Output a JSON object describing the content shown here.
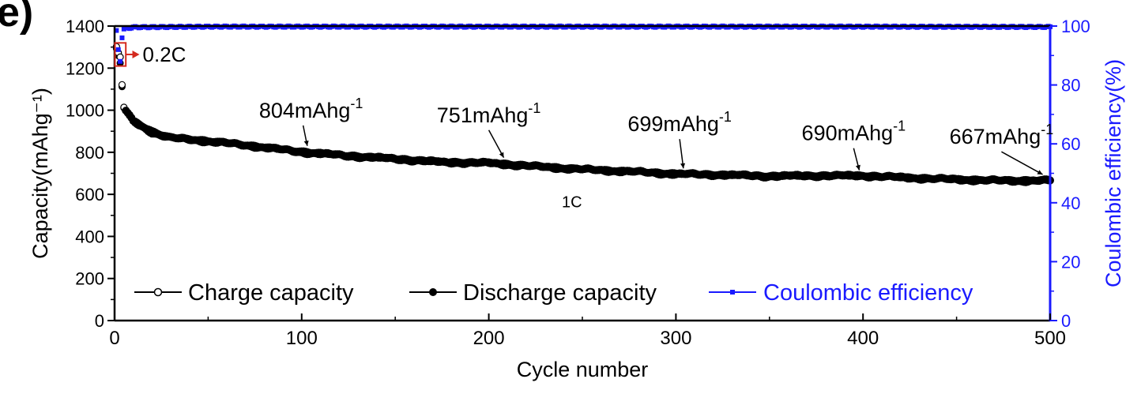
{
  "panel_label": "e)",
  "chart_data": {
    "type": "scatter",
    "xlabel": "Cycle number",
    "ylabel_left": "Capacity(mAhg⁻¹)",
    "ylabel_right": "Coulombic efficiency(%)",
    "xlim": [
      0,
      500
    ],
    "ylim_left": [
      0,
      1400
    ],
    "ylim_right": [
      0,
      100
    ],
    "x_ticks": [
      0,
      100,
      200,
      300,
      400,
      500
    ],
    "y_left_ticks": [
      0,
      200,
      400,
      600,
      800,
      1000,
      1200,
      1400
    ],
    "y_right_ticks": [
      0,
      20,
      40,
      60,
      80,
      100
    ],
    "legend_position": "bottom-left",
    "colors": {
      "capacity": "#000000",
      "efficiency": "#1a1aff",
      "rate_box": "#d42a1e"
    },
    "series": [
      {
        "name": "Charge capacity",
        "axis": "left",
        "marker": "open-circle",
        "x": [
          1,
          2,
          3,
          4,
          5,
          10,
          20,
          30,
          50,
          75,
          100,
          125,
          150,
          175,
          200,
          225,
          250,
          275,
          300,
          325,
          350,
          375,
          400,
          425,
          450,
          475,
          500
        ],
        "values": [
          1300,
          1270,
          1250,
          1120,
          1015,
          950,
          900,
          870,
          855,
          830,
          804,
          785,
          770,
          755,
          751,
          735,
          720,
          710,
          699,
          694,
          688,
          690,
          690,
          680,
          672,
          667,
          667
        ]
      },
      {
        "name": "Discharge capacity",
        "axis": "left",
        "marker": "filled-circle",
        "x": [
          1,
          2,
          3,
          4,
          5,
          10,
          20,
          30,
          50,
          75,
          100,
          125,
          150,
          175,
          200,
          225,
          250,
          275,
          300,
          325,
          350,
          375,
          400,
          425,
          450,
          475,
          500
        ],
        "values": [
          1290,
          1255,
          1220,
          1110,
          1010,
          945,
          895,
          868,
          852,
          828,
          800,
          782,
          768,
          752,
          748,
          732,
          718,
          708,
          696,
          692,
          686,
          688,
          688,
          678,
          670,
          664,
          665
        ]
      },
      {
        "name": "Coulombic efficiency",
        "axis": "right",
        "marker": "filled-square",
        "x": [
          1,
          2,
          3,
          4,
          5,
          10,
          50,
          100,
          200,
          300,
          400,
          500
        ],
        "values": [
          98.5,
          92,
          88,
          96,
          99,
          99.6,
          99.8,
          99.8,
          99.8,
          99.8,
          99.8,
          99.7
        ]
      }
    ],
    "annotations": [
      {
        "text": "0.2C",
        "x": 15,
        "y": 1265
      },
      {
        "text": "1C",
        "x": 250,
        "y": 565
      },
      {
        "text": "804mAhg",
        "sup": "-1",
        "x": 105,
        "y": 965,
        "target_x": 103,
        "target_y": 808
      },
      {
        "text": "751mAhg",
        "sup": "-1",
        "x": 200,
        "y": 943,
        "target_x": 208,
        "target_y": 752
      },
      {
        "text": "699mAhg",
        "sup": "-1",
        "x": 302,
        "y": 900,
        "target_x": 304,
        "target_y": 701
      },
      {
        "text": "690mAhg",
        "sup": "-1",
        "x": 395,
        "y": 857,
        "target_x": 398,
        "target_y": 692
      },
      {
        "text": "667mAhg",
        "sup": "-1",
        "x": 474,
        "y": 840,
        "target_x": 496,
        "target_y": 672
      }
    ]
  }
}
